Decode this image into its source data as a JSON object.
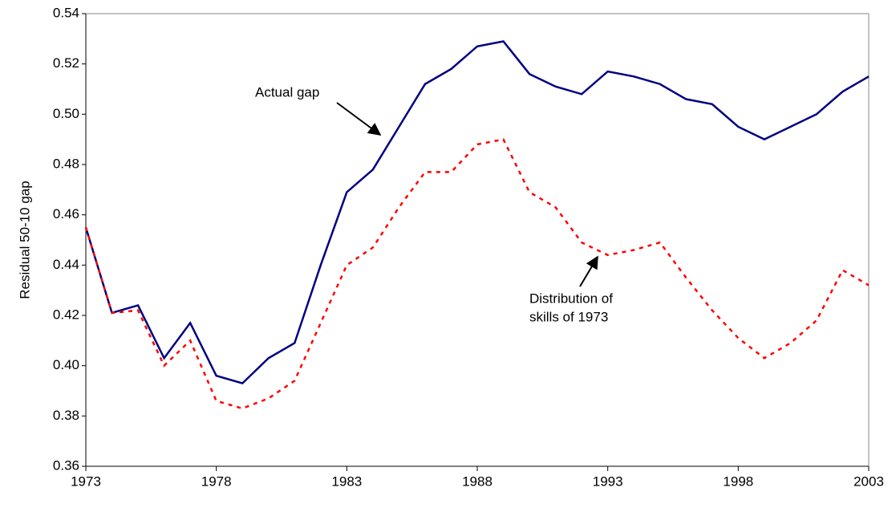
{
  "chart_data": {
    "type": "line",
    "y_label": "Residual 50-10 gap",
    "x": [
      1973,
      1974,
      1975,
      1976,
      1977,
      1978,
      1979,
      1980,
      1981,
      1982,
      1983,
      1984,
      1985,
      1986,
      1987,
      1988,
      1989,
      1990,
      1991,
      1992,
      1993,
      1994,
      1995,
      1996,
      1997,
      1998,
      1999,
      2000,
      2001,
      2002,
      2003
    ],
    "series": [
      {
        "name": "Actual gap",
        "color": "#000080",
        "style": "solid",
        "values": [
          0.455,
          0.421,
          0.424,
          0.403,
          0.417,
          0.396,
          0.393,
          0.403,
          0.409,
          0.44,
          0.469,
          0.478,
          0.495,
          0.512,
          0.518,
          0.527,
          0.529,
          0.516,
          0.511,
          0.508,
          0.517,
          0.515,
          0.512,
          0.506,
          0.504,
          0.495,
          0.49,
          0.495,
          0.5,
          0.509,
          0.515
        ]
      },
      {
        "name": "Distribution of skills of 1973",
        "color": "#ff0000",
        "style": "dashed",
        "values": [
          0.455,
          0.421,
          0.422,
          0.4,
          0.41,
          0.386,
          0.383,
          0.387,
          0.394,
          0.417,
          0.44,
          0.447,
          0.463,
          0.477,
          0.477,
          0.488,
          0.49,
          0.469,
          0.463,
          0.449,
          0.444,
          0.446,
          0.449,
          0.435,
          0.422,
          0.411,
          0.403,
          0.409,
          0.418,
          0.438,
          0.432
        ]
      }
    ],
    "annotations": [
      {
        "lines": [
          "Actual gap"
        ]
      },
      {
        "lines": [
          "Distribution of",
          "skills of 1973"
        ]
      }
    ],
    "xlim": [
      1973,
      2003
    ],
    "xticks": [
      1973,
      1978,
      1983,
      1988,
      1993,
      1998,
      2003
    ],
    "ylim": [
      0.36,
      0.54
    ],
    "yticks": [
      0.36,
      0.38,
      {
        "value": 0.4,
        "label": "0.40"
      },
      0.42,
      0.44,
      0.46,
      0.48,
      {
        "value": 0.5,
        "label": "0.50"
      },
      0.52,
      0.54
    ]
  }
}
